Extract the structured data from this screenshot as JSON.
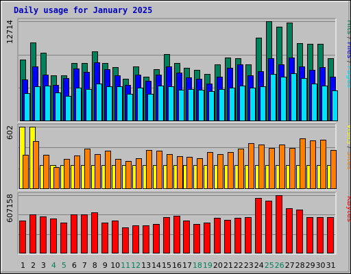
{
  "chart_data": {
    "type": "bar",
    "title": "Daily usage for January 2025",
    "days": [
      "1",
      "2",
      "3",
      "4",
      "5",
      "6",
      "7",
      "8",
      "9",
      "10",
      "11",
      "12",
      "13",
      "14",
      "15",
      "16",
      "17",
      "18",
      "19",
      "20",
      "21",
      "22",
      "23",
      "24",
      "25",
      "26",
      "27",
      "28",
      "29",
      "30",
      "31"
    ],
    "weekend_days": [
      4,
      5,
      11,
      12,
      18,
      19,
      25,
      26
    ],
    "panels": [
      {
        "name": "hits-files-pages",
        "ymax_label": "12714",
        "ymax": 12714,
        "series_order": [
          "Pages",
          "Files",
          "Hits"
        ],
        "series": [
          {
            "name": "Hits",
            "color": "#00805c",
            "values": [
              7800,
              10000,
              8700,
              5800,
              5800,
              7400,
              7400,
              8900,
              7400,
              6900,
              5400,
              7000,
              5700,
              6600,
              8500,
              7400,
              6800,
              6500,
              6000,
              7200,
              8100,
              8000,
              7200,
              10600,
              12714,
              12000,
              12500,
              9900,
              9800,
              9800,
              8000
            ]
          },
          {
            "name": "Files",
            "color": "#0000ff",
            "values": [
              5300,
              7000,
              5900,
              4600,
              5500,
              6700,
              6300,
              7500,
              6600,
              5800,
              4600,
              5900,
              5100,
              5900,
              7000,
              6200,
              5600,
              5400,
              4800,
              5700,
              6800,
              7200,
              5800,
              6400,
              8000,
              7200,
              8100,
              7000,
              6500,
              6900,
              5700
            ]
          },
          {
            "name": "Pages",
            "color": "#00e0ff",
            "values": [
              3600,
              4400,
              4500,
              3700,
              3200,
              4300,
              4100,
              4800,
              4400,
              4400,
              3500,
              4300,
              3500,
              4500,
              4400,
              4000,
              4100,
              4000,
              3800,
              4100,
              4300,
              4500,
              4300,
              4400,
              6000,
              5700,
              6100,
              5500,
              4800,
              4500,
              3900
            ]
          }
        ]
      },
      {
        "name": "visits-sites",
        "ymax_label": "602",
        "ymax": 602,
        "series_order": [
          "Sites",
          "Visits"
        ],
        "series": [
          {
            "name": "Visits",
            "color": "#ffff00",
            "values": [
              602,
              602,
              232,
              232,
              232,
              232,
              232,
              232,
              232,
              232,
              232,
              232,
              232,
              232,
              232,
              232,
              232,
              232,
              232,
              232,
              232,
              232,
              232,
              232,
              232,
              232,
              232,
              232,
              232,
              232,
              232
            ]
          },
          {
            "name": "Sites",
            "color": "#ff8000",
            "values": [
              330,
              460,
              330,
              210,
              290,
              325,
              390,
              340,
              370,
              290,
              270,
              300,
              380,
              370,
              340,
              320,
              310,
              300,
              360,
              335,
              360,
              390,
              440,
              430,
              395,
              430,
              400,
              490,
              470,
              475,
              375
            ]
          }
        ]
      },
      {
        "name": "kbytes",
        "ymax_label": "607158",
        "ymax": 607158,
        "series_order": [
          "KBytes"
        ],
        "series": [
          {
            "name": "KBytes",
            "color": "#ff0000",
            "values": [
              340000,
              405000,
              385000,
              365000,
              322000,
              408000,
              408000,
              432000,
              325000,
              345000,
              270000,
              296000,
              296000,
              305000,
              378000,
              392000,
              345000,
              305000,
              320000,
              368000,
              348000,
              372000,
              376000,
              580000,
              552000,
              607158,
              470000,
              458000,
              378000,
              378000,
              376000
            ]
          }
        ]
      }
    ],
    "side_labels": {
      "top": [
        {
          "text": "Pages",
          "color": "#00e0ff"
        },
        {
          "text": "/",
          "color": "#404040"
        },
        {
          "text": "Files",
          "color": "#0000ff"
        },
        {
          "text": "/",
          "color": "#404040"
        },
        {
          "text": "Hits",
          "color": "#00805c"
        }
      ],
      "mid": [
        {
          "text": "Sites",
          "color": "#ff8000"
        },
        {
          "text": "/",
          "color": "#404040"
        },
        {
          "text": "Visits",
          "color": "#ffff00"
        }
      ],
      "bottom": [
        {
          "text": "KBytes",
          "color": "#ff0000"
        }
      ]
    }
  }
}
